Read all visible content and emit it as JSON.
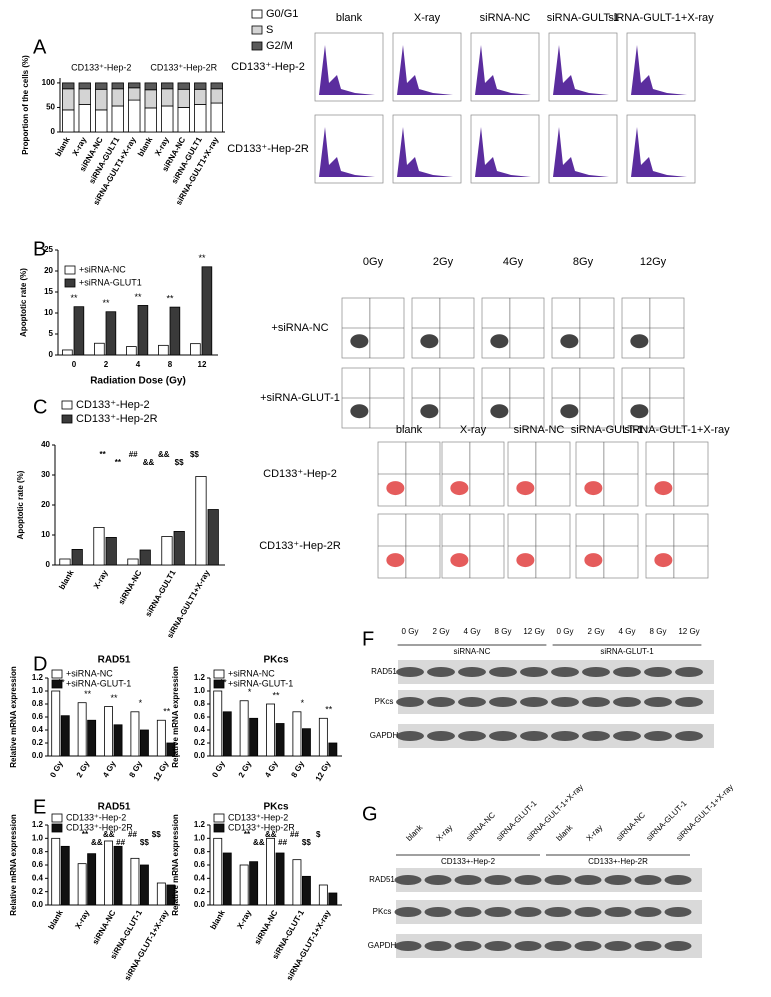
{
  "panel_labels": [
    "A",
    "B",
    "C",
    "D",
    "E",
    "F",
    "G"
  ],
  "flow_a": {
    "columns": [
      "blank",
      "X-ray",
      "siRNA-NC",
      "siRNA-GULT-1",
      "siRNA-GULT-1+X-ray"
    ],
    "rows": [
      "CD133⁺-Hep-2",
      "CD133⁺-Hep-2R"
    ]
  },
  "flow_b": {
    "columns": [
      "0Gy",
      "2Gy",
      "4Gy",
      "8Gy",
      "12Gy"
    ],
    "rows": [
      "+siRNA-NC",
      "+siRNA-GLUT-1"
    ]
  },
  "flow_c": {
    "columns": [
      "blank",
      "X-ray",
      "siRNA-NC",
      "siRNA-GULT-1",
      "siRNA-GULT-1+X-ray"
    ],
    "rows": [
      "CD133⁺-Hep-2",
      "CD133⁺-Hep-2R"
    ]
  },
  "blot_f": {
    "lanes": [
      "0 Gy",
      "2 Gy",
      "4 Gy",
      "8 Gy",
      "12 Gy",
      "0 Gy",
      "2 Gy",
      "4 Gy",
      "8 Gy",
      "12 Gy"
    ],
    "groups": [
      "siRNA-NC",
      "siRNA-GLUT-1"
    ],
    "rows": [
      "RAD51",
      "PKcs",
      "GAPDH"
    ]
  },
  "blot_g": {
    "lanes": [
      "blank",
      "X-ray",
      "siRNA-NC",
      "siRNA-GLUT-1",
      "siRNA-GULT-1+X-ray",
      "blank",
      "X-ray",
      "siRNA-NC",
      "siRNA-GLUT-1",
      "siRNA-GULT-1+X-ray"
    ],
    "groups": [
      "CD133+-Hep-2",
      "CD133+-Hep-2R"
    ],
    "rows": [
      "RAD51",
      "PKcs",
      "GAPDH"
    ]
  },
  "chart_data": [
    {
      "type": "bar",
      "stacked": true,
      "y_label": "Proportion of the cells (%)",
      "groups": [
        "CD133⁺-Hep-2",
        "CD133⁺-Hep-2R"
      ],
      "categories": [
        "blank",
        "X-ray",
        "siRNA-NC",
        "siRNA-GULT1",
        "siRNA-GULT1+X-ray",
        "blank",
        "X-ray",
        "siRNA-NC",
        "siRNA-GULT1",
        "siRNA-GULT1+X-ray"
      ],
      "series": [
        {
          "name": "G0/G1",
          "color": "#ffffff",
          "values": [
            45,
            56,
            45,
            53,
            65,
            49,
            53,
            50,
            56,
            59
          ]
        },
        {
          "name": "S",
          "color": "#d4d4d4",
          "values": [
            43,
            32,
            42,
            35,
            25,
            37,
            35,
            37,
            31,
            29
          ]
        },
        {
          "name": "G2/M",
          "color": "#5a5a5a",
          "values": [
            12,
            12,
            13,
            12,
            10,
            14,
            12,
            13,
            13,
            12
          ]
        }
      ],
      "ylim": [
        0,
        110
      ],
      "yticks": [
        0,
        50,
        100
      ]
    },
    {
      "type": "bar",
      "x_label": "Radiation Dose (Gy)",
      "y_label": "Apoptotic rate (%)",
      "categories": [
        "0",
        "2",
        "4",
        "8",
        "12"
      ],
      "series": [
        {
          "name": "+siRNA-NC",
          "color": "#ffffff",
          "values": [
            1.2,
            2.8,
            2.0,
            2.3,
            2.7
          ]
        },
        {
          "name": "+siRNA-GLUT1",
          "color": "#3a3a3a",
          "values": [
            11.5,
            10.3,
            11.8,
            11.4,
            21.0
          ]
        }
      ],
      "significance": [
        "**",
        "**",
        "**",
        "**",
        "**"
      ],
      "ylim": [
        0,
        25
      ],
      "yticks": [
        0,
        5,
        10,
        15,
        20,
        25
      ]
    },
    {
      "type": "bar",
      "y_label": "Apoptotic rate (%)",
      "categories": [
        "blank",
        "X-ray",
        "siRNA-NC",
        "siRNA-GULT1",
        "siRNA-GULT1+X-ray"
      ],
      "series": [
        {
          "name": "CD133⁺-Hep-2",
          "color": "#ffffff",
          "values": [
            2.0,
            12.5,
            2.0,
            9.5,
            29.5
          ]
        },
        {
          "name": "CD133⁺-Hep-2R",
          "color": "#3a3a3a",
          "values": [
            5.2,
            9.2,
            5.0,
            11.2,
            18.5
          ]
        }
      ],
      "annotations": [
        "**",
        "**",
        "##",
        "&&",
        "&&",
        "$$",
        "$$"
      ],
      "ylim": [
        0,
        40
      ],
      "yticks": [
        0,
        10,
        20,
        30,
        40
      ]
    },
    {
      "type": "bar",
      "title": "RAD51",
      "y_label": "Relative mRNA expression",
      "categories": [
        "0 Gy",
        "2 Gy",
        "4 Gy",
        "8 Gy",
        "12 Gy"
      ],
      "series": [
        {
          "name": "+siRNA-NC",
          "color": "#ffffff",
          "values": [
            1.0,
            0.82,
            0.76,
            0.68,
            0.55
          ]
        },
        {
          "name": "+siRNA-GLUT-1",
          "color": "#111111",
          "values": [
            0.62,
            0.55,
            0.48,
            0.4,
            0.2
          ]
        }
      ],
      "significance": [
        "**",
        "**",
        "**",
        "*",
        "**"
      ],
      "ylim": [
        0,
        1.2
      ],
      "yticks": [
        {
          "value": 0,
          "label": "0.0"
        },
        0.2,
        0.4,
        0.6,
        0.8,
        {
          "value": 1,
          "label": "1.0"
        },
        1.2
      ]
    },
    {
      "type": "bar",
      "title": "PKcs",
      "y_label": "Relative mRNA expression",
      "categories": [
        "0 Gy",
        "2 Gy",
        "4 Gy",
        "8 Gy",
        "12 Gy"
      ],
      "series": [
        {
          "name": "+siRNA-NC",
          "color": "#ffffff",
          "values": [
            1.0,
            0.85,
            0.8,
            0.68,
            0.58
          ]
        },
        {
          "name": "+siRNA-GLUT-1",
          "color": "#111111",
          "values": [
            0.68,
            0.58,
            0.5,
            0.42,
            0.2
          ]
        }
      ],
      "significance": [
        "**",
        "*",
        "**",
        "*",
        "**"
      ],
      "ylim": [
        0,
        1.2
      ],
      "yticks": [
        {
          "value": 0,
          "label": "0.0"
        },
        0.2,
        0.4,
        0.6,
        0.8,
        {
          "value": 1,
          "label": "1.0"
        },
        1.2
      ]
    },
    {
      "type": "bar",
      "title": "RAD51",
      "y_label": "Relative mRNA expression",
      "categories": [
        "blank",
        "X-ray",
        "siRNA-NC",
        "siRNA-GLUT-1",
        "siRNA-GLUT-1+X-ray"
      ],
      "series": [
        {
          "name": "CD133⁺-Hep-2",
          "color": "#ffffff",
          "values": [
            1.0,
            0.62,
            0.96,
            0.7,
            0.33
          ]
        },
        {
          "name": "CD133⁺-Hep-2R",
          "color": "#111111",
          "values": [
            0.88,
            0.77,
            0.88,
            0.6,
            0.3
          ]
        }
      ],
      "annotations": [
        "**",
        "&&",
        "&&",
        "##",
        "##",
        "$$",
        "$$"
      ],
      "ylim": [
        0,
        1.2
      ],
      "yticks": [
        {
          "value": 0,
          "label": "0.0"
        },
        0.2,
        0.4,
        0.6,
        0.8,
        {
          "value": 1,
          "label": "1.0"
        },
        1.2
      ]
    },
    {
      "type": "bar",
      "title": "PKcs",
      "y_label": "Relative mRNA expression",
      "categories": [
        "blank",
        "X-ray",
        "siRNA-NC",
        "siRNA-GLUT-1",
        "siRNA-GLUT-1+X-ray"
      ],
      "series": [
        {
          "name": "CD133⁺-Hep-2",
          "color": "#ffffff",
          "values": [
            1.0,
            0.6,
            1.0,
            0.68,
            0.3
          ]
        },
        {
          "name": "CD133⁺-Hep-2R",
          "color": "#111111",
          "values": [
            0.78,
            0.65,
            0.78,
            0.43,
            0.18
          ]
        }
      ],
      "annotations": [
        "**",
        "&&",
        "&&",
        "##",
        "##",
        "$$",
        "$"
      ],
      "ylim": [
        0,
        1.2
      ],
      "yticks": [
        {
          "value": 0,
          "label": "0.0"
        },
        0.2,
        0.4,
        0.6,
        0.8,
        {
          "value": 1,
          "label": "1.0"
        },
        1.2
      ]
    }
  ]
}
